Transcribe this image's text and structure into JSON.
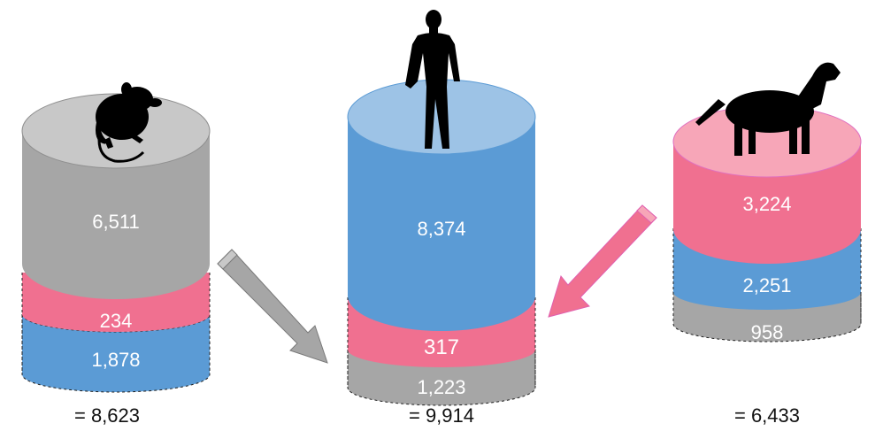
{
  "colors": {
    "gray_side": "#a6a6a6",
    "gray_top": "#c8c8c8",
    "pink_side": "#f07090",
    "pink_top": "#f7a6b8",
    "blue_side": "#5b9bd5",
    "blue_top": "#9dc3e6",
    "outline_dash": "#222222"
  },
  "stacks": [
    {
      "icon": "rat-silhouette-icon",
      "segments": [
        {
          "label": "6,511",
          "color": "gray"
        },
        {
          "label": "234",
          "color": "pink"
        },
        {
          "label": "1,878",
          "color": "blue"
        }
      ],
      "total": "= 8,623"
    },
    {
      "icon": "human-silhouette-icon",
      "segments": [
        {
          "label": "8,374",
          "color": "blue"
        },
        {
          "label": "317",
          "color": "pink"
        },
        {
          "label": "1,223",
          "color": "gray"
        }
      ],
      "total": "= 9,914"
    },
    {
      "icon": "dog-silhouette-icon",
      "segments": [
        {
          "label": "3,224",
          "color": "pink"
        },
        {
          "label": "2,251",
          "color": "blue"
        },
        {
          "label": "958",
          "color": "gray"
        }
      ],
      "total": "= 6,433"
    }
  ],
  "arrows": [
    {
      "name": "rat-to-human-arrow",
      "color": "gray"
    },
    {
      "name": "dog-to-human-arrow",
      "color": "pink"
    }
  ]
}
